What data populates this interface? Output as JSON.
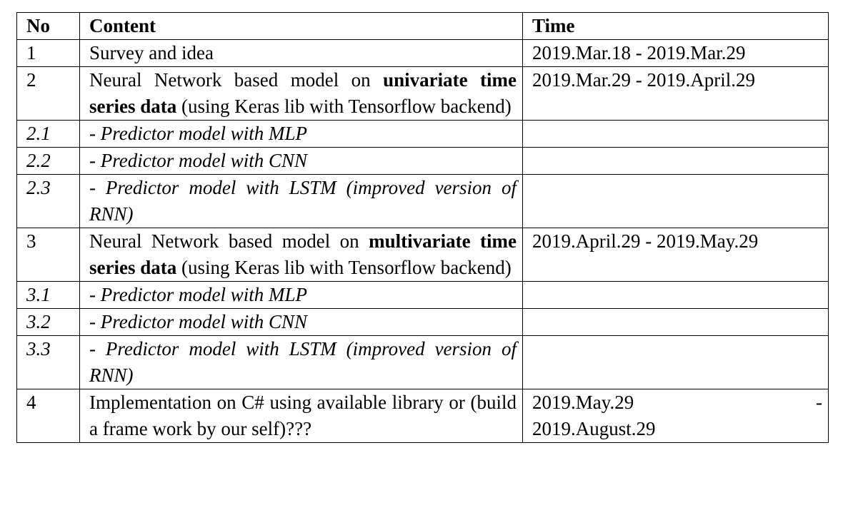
{
  "headers": {
    "no": "No",
    "content": "Content",
    "time": "Time"
  },
  "rows": [
    {
      "no": "1",
      "content": "Survey and idea",
      "time": "2019.Mar.18 - 2019.Mar.29"
    },
    {
      "no": "2",
      "content_pre": "Neural Network based model on ",
      "content_bold": "univariate time series data",
      "content_post": " (using Keras lib with Tensorflow backend)",
      "time": "2019.Mar.29 - 2019.April.29"
    },
    {
      "no": "2.1",
      "content": "- Predictor model with MLP",
      "time": ""
    },
    {
      "no": "2.2",
      "content": "- Predictor model with CNN",
      "time": ""
    },
    {
      "no": "2.3",
      "content": "- Predictor model with LSTM (improved version of RNN)",
      "time": ""
    },
    {
      "no": "3",
      "content_pre": "Neural Network based model on ",
      "content_bold": "multivariate time series data",
      "content_post": " (using Keras lib with Tensorflow backend)",
      "time": "2019.April.29 - 2019.May.29"
    },
    {
      "no": "3.1",
      "content": "- Predictor model with MLP",
      "time": ""
    },
    {
      "no": "3.2",
      "content": "- Predictor model with CNN",
      "time": ""
    },
    {
      "no": "3.3",
      "content": "- Predictor model with LSTM (improved version of RNN)",
      "time": ""
    },
    {
      "no": "4",
      "content": "Implementation on C# using available library or (build a frame work by our self)???",
      "time_start": "2019.May.29",
      "time_dash": "-",
      "time_end": "2019.August.29"
    }
  ]
}
